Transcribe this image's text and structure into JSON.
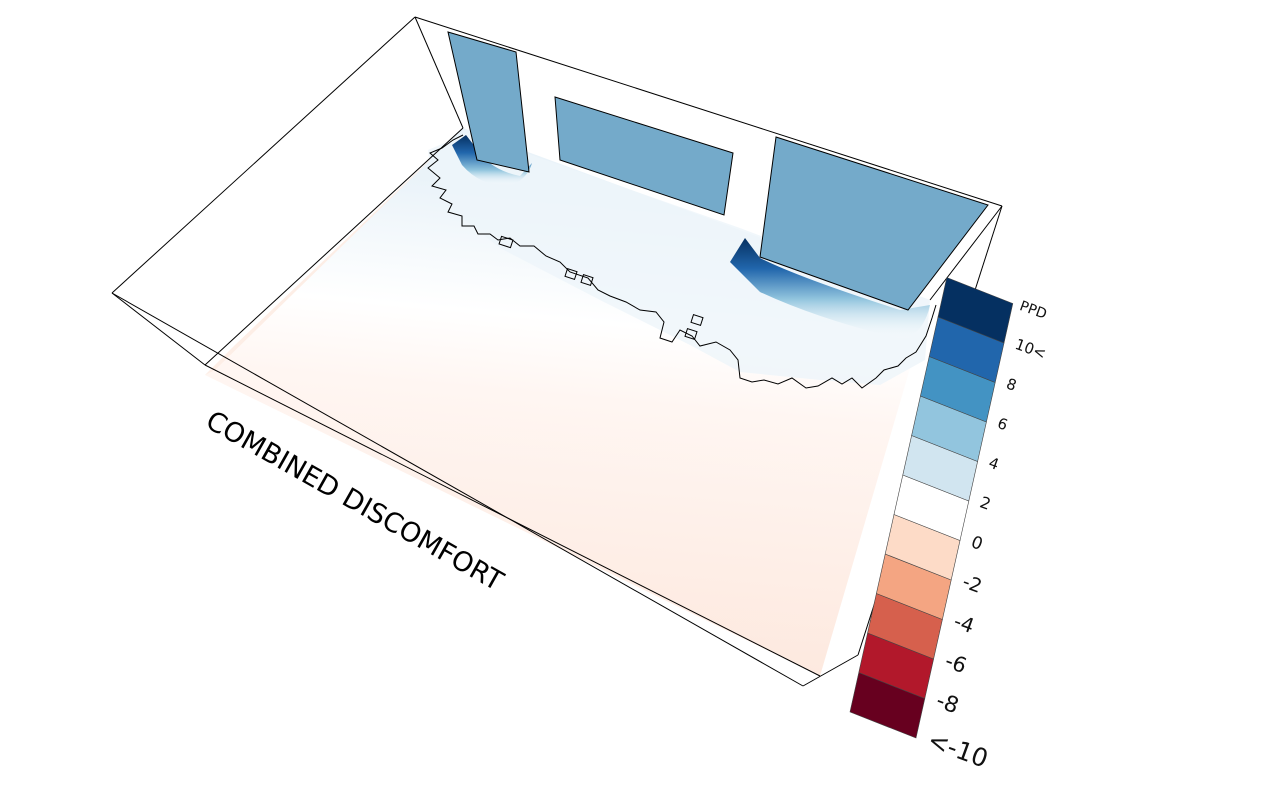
{
  "title": "COMBINED DISCOMFORT",
  "legend": {
    "unit": "PPD",
    "bins": [
      {
        "label": "<-10",
        "color": "#67001f"
      },
      {
        "label": "-8",
        "color": "#b2182b"
      },
      {
        "label": "-6",
        "color": "#d6604d"
      },
      {
        "label": "-4",
        "color": "#f4a582"
      },
      {
        "label": "-2",
        "color": "#fddbc7"
      },
      {
        "label": "0",
        "color": "#ffffff"
      },
      {
        "label": "2",
        "color": "#d1e5f0"
      },
      {
        "label": "4",
        "color": "#92c5de"
      },
      {
        "label": "6",
        "color": "#4393c3"
      },
      {
        "label": "8",
        "color": "#2166ac"
      },
      {
        "label": "10<",
        "color": "#053061"
      }
    ]
  },
  "colors": {
    "window_glass": "#74aaca",
    "floor_warm": "#fdebe3",
    "floor_neutral": "#ffffff",
    "floor_cool": "#eaf3f9",
    "wall_outline": "#000000"
  }
}
